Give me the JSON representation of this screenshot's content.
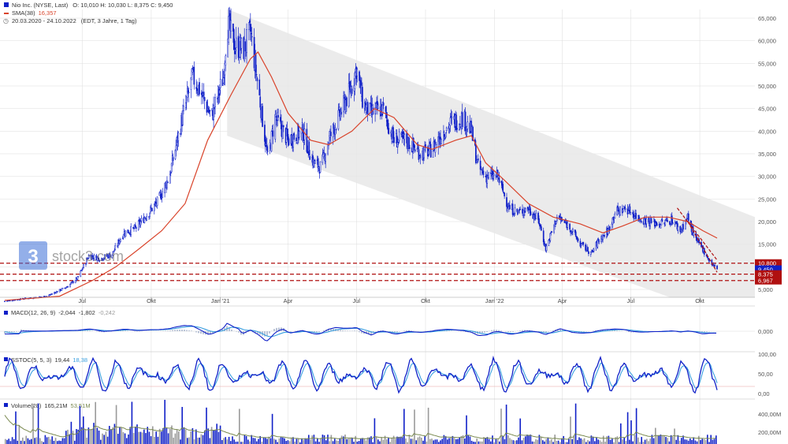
{
  "header": {
    "legend_main": "Nio Inc. (NYSE, Last)",
    "ohlc": "O: 10,010  H: 10,030  L: 8,375  C: 9,450",
    "sma_label": "SMA(38)",
    "sma_value": "16,357",
    "range": "20.03.2020 - 24.10.2022",
    "range_note": "(EDT, 3 Jahre, 1 Tag)"
  },
  "watermark": {
    "mark": "3",
    "text": "stock3.com"
  },
  "colors": {
    "candle": "#1020c8",
    "sma": "#d9432a",
    "channel": "#e7e7e7",
    "hline": "#b01010",
    "grid": "#dcdcdc",
    "macd_signal": "#3aa0e0",
    "vol_up": "#1020c8",
    "vol_down": "#9a9a9a",
    "vol_avg": "#7a8a50"
  },
  "axes": {
    "x_labels": [
      "Jul",
      "Okt",
      "Jan '21",
      "Apr",
      "Jul",
      "Okt",
      "Jan '22",
      "Apr",
      "Jul",
      "Okt"
    ],
    "price_ticks": [
      "65,000",
      "60,000",
      "55,000",
      "50,000",
      "45,000",
      "40,000",
      "35,000",
      "30,000",
      "25,000",
      "20,000",
      "15,000",
      "10,000",
      "5,000"
    ],
    "macd_ticks": [
      "0,000"
    ],
    "sstoc_ticks": [
      "100,00",
      "50,00",
      "0,00"
    ],
    "volume_ticks": [
      "400,00M",
      "200,00M"
    ]
  },
  "price_boxes": [
    {
      "label": "10,800",
      "color": "#b01010"
    },
    {
      "label": "9,450",
      "color": "#1020c8"
    },
    {
      "label": "8,375",
      "color": "#b01010"
    },
    {
      "label": "6,967",
      "color": "#b01010"
    }
  ],
  "panels": {
    "macd": {
      "label": "MACD(12, 26, 9)",
      "v1": "-2,044",
      "v2": "-1,802",
      "v3": "-0,242"
    },
    "sstoc": {
      "label": "SSTOC(5, 5, 3)",
      "v1": "19,44",
      "v2": "18,38"
    },
    "volume": {
      "label": "Volume(28)",
      "v1": "165,21M",
      "v2": "53,51M"
    }
  },
  "chart_data": {
    "type": "line",
    "title": "Nio Inc. (NYSE, Last)",
    "x_range": [
      "2020-03-20",
      "2022-10-24"
    ],
    "ylim": [
      2,
      67
    ],
    "price_close": [
      [
        "2020-03-20",
        2.4
      ],
      [
        "2020-04-15",
        3.0
      ],
      [
        "2020-05-15",
        3.5
      ],
      [
        "2020-06-10",
        5.5
      ],
      [
        "2020-06-25",
        7.5
      ],
      [
        "2020-07-10",
        12.5
      ],
      [
        "2020-07-25",
        11.8
      ],
      [
        "2020-08-10",
        12.8
      ],
      [
        "2020-08-25",
        17.5
      ],
      [
        "2020-09-10",
        18.5
      ],
      [
        "2020-09-25",
        21.5
      ],
      [
        "2020-10-10",
        24.5
      ],
      [
        "2020-10-25",
        30.0
      ],
      [
        "2020-11-10",
        42.0
      ],
      [
        "2020-11-25",
        52.0
      ],
      [
        "2020-12-05",
        49.0
      ],
      [
        "2020-12-20",
        43.0
      ],
      [
        "2021-01-05",
        52.0
      ],
      [
        "2021-01-10",
        64.0
      ],
      [
        "2021-01-20",
        59.0
      ],
      [
        "2021-02-01",
        58.0
      ],
      [
        "2021-02-10",
        62.0
      ],
      [
        "2021-02-20",
        50.0
      ],
      [
        "2021-03-05",
        34.0
      ],
      [
        "2021-03-15",
        43.0
      ],
      [
        "2021-04-01",
        38.0
      ],
      [
        "2021-04-20",
        40.0
      ],
      [
        "2021-05-05",
        33.0
      ],
      [
        "2021-05-15",
        32.0
      ],
      [
        "2021-05-25",
        38.0
      ],
      [
        "2021-06-10",
        44.0
      ],
      [
        "2021-06-25",
        50.0
      ],
      [
        "2021-07-01",
        54.0
      ],
      [
        "2021-07-10",
        46.0
      ],
      [
        "2021-07-20",
        44.0
      ],
      [
        "2021-08-05",
        45.0
      ],
      [
        "2021-08-20",
        38.0
      ],
      [
        "2021-09-05",
        38.0
      ],
      [
        "2021-09-25",
        35.0
      ],
      [
        "2021-10-10",
        36.0
      ],
      [
        "2021-10-25",
        40.0
      ],
      [
        "2021-11-05",
        42.0
      ],
      [
        "2021-11-20",
        43.0
      ],
      [
        "2021-12-01",
        40.0
      ],
      [
        "2021-12-10",
        32.0
      ],
      [
        "2021-12-20",
        30.0
      ],
      [
        "2022-01-05",
        30.0
      ],
      [
        "2022-01-20",
        23.0
      ],
      [
        "2022-02-01",
        22.0
      ],
      [
        "2022-02-15",
        23.0
      ],
      [
        "2022-03-01",
        20.0
      ],
      [
        "2022-03-10",
        14.0
      ],
      [
        "2022-03-25",
        21.0
      ],
      [
        "2022-04-10",
        19.0
      ],
      [
        "2022-04-25",
        15.0
      ],
      [
        "2022-05-10",
        13.0
      ],
      [
        "2022-05-20",
        16.0
      ],
      [
        "2022-06-01",
        18.0
      ],
      [
        "2022-06-10",
        22.0
      ],
      [
        "2022-06-25",
        23.0
      ],
      [
        "2022-07-10",
        21.0
      ],
      [
        "2022-07-25",
        20.0
      ],
      [
        "2022-08-10",
        19.5
      ],
      [
        "2022-08-25",
        20.5
      ],
      [
        "2022-09-05",
        18.0
      ],
      [
        "2022-09-15",
        21.0
      ],
      [
        "2022-09-25",
        16.0
      ],
      [
        "2022-10-05",
        14.0
      ],
      [
        "2022-10-15",
        11.0
      ],
      [
        "2022-10-24",
        9.45
      ]
    ],
    "sma38": [
      [
        "2020-03-20",
        2.6
      ],
      [
        "2020-06-01",
        3.5
      ],
      [
        "2020-07-15",
        7.0
      ],
      [
        "2020-08-15",
        10.0
      ],
      [
        "2020-09-15",
        14.0
      ],
      [
        "2020-10-15",
        18.0
      ],
      [
        "2020-11-15",
        24.0
      ],
      [
        "2020-12-15",
        38.0
      ],
      [
        "2021-01-15",
        48.0
      ],
      [
        "2021-02-10",
        56.0
      ],
      [
        "2021-02-20",
        57.5
      ],
      [
        "2021-03-10",
        52.0
      ],
      [
        "2021-04-01",
        44.0
      ],
      [
        "2021-05-01",
        38.0
      ],
      [
        "2021-05-25",
        37.0
      ],
      [
        "2021-06-25",
        40.0
      ],
      [
        "2021-07-25",
        45.0
      ],
      [
        "2021-08-20",
        43.0
      ],
      [
        "2021-09-20",
        37.0
      ],
      [
        "2021-10-10",
        36.0
      ],
      [
        "2021-11-10",
        38.0
      ],
      [
        "2021-12-01",
        39.0
      ],
      [
        "2021-12-20",
        33.0
      ],
      [
        "2022-01-15",
        29.0
      ],
      [
        "2022-02-15",
        24.0
      ],
      [
        "2022-03-20",
        21.0
      ],
      [
        "2022-04-25",
        19.5
      ],
      [
        "2022-05-25",
        17.5
      ],
      [
        "2022-06-20",
        19.0
      ],
      [
        "2022-07-20",
        21.0
      ],
      [
        "2022-08-20",
        21.0
      ],
      [
        "2022-09-15",
        20.0
      ],
      [
        "2022-10-05",
        18.0
      ],
      [
        "2022-10-24",
        16.357
      ]
    ],
    "channel": {
      "upper": [
        [
          "2021-01-10",
          67
        ],
        [
          "2022-10-24",
          23
        ]
      ],
      "lower": [
        [
          "2021-01-10",
          39
        ],
        [
          "2022-10-24",
          -5
        ]
      ]
    },
    "horizontal_levels": [
      10.8,
      8.375,
      6.967
    ],
    "latest": {
      "open": 10.01,
      "high": 10.03,
      "low": 8.375,
      "close": 9.45,
      "sma38": 16.357
    },
    "series": [
      {
        "name": "Nio Inc. (NYSE, Last)"
      },
      {
        "name": "SMA(38)"
      }
    ],
    "macd": {
      "macd": -2.044,
      "signal": -1.802,
      "histogram": -0.242
    },
    "sstoc": {
      "k": 19.44,
      "d": 18.38
    },
    "volume": {
      "volume": "165,21M",
      "average": "53,51M"
    }
  }
}
